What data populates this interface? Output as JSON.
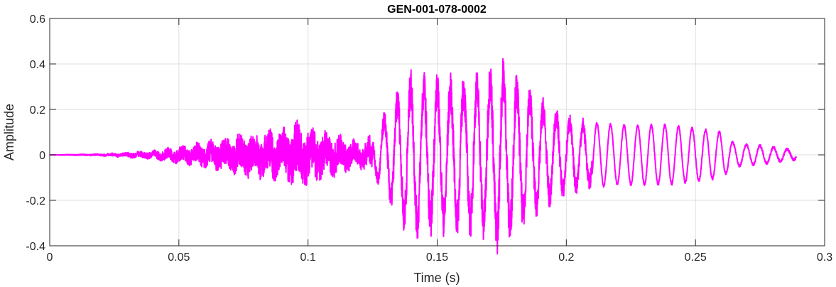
{
  "chart_data": {
    "type": "line",
    "title": "GEN-001-078-0002",
    "xlabel": "Time (s)",
    "ylabel": "Amplitude",
    "xlim": [
      0,
      0.3
    ],
    "ylim": [
      -0.4,
      0.6
    ],
    "xticks": [
      0,
      0.05,
      0.1,
      0.15,
      0.2,
      0.25,
      0.3
    ],
    "xtick_labels": [
      "0",
      "0.05",
      "0.1",
      "0.15",
      "0.2",
      "0.25",
      "0.3"
    ],
    "yticks": [
      -0.4,
      -0.2,
      0,
      0.2,
      0.4,
      0.6
    ],
    "ytick_labels": [
      "-0.4",
      "-0.2",
      "0",
      "0.2",
      "0.4",
      "0.6"
    ],
    "grid": true,
    "box": true,
    "series": [
      {
        "color": "#ff00ff",
        "duration_s": 0.289,
        "envelope_peaks": [
          [
            0.0,
            0.0
          ],
          [
            0.02,
            0.005
          ],
          [
            0.04,
            0.02
          ],
          [
            0.05,
            0.04
          ],
          [
            0.06,
            0.06
          ],
          [
            0.07,
            0.09
          ],
          [
            0.08,
            0.11
          ],
          [
            0.09,
            0.13
          ],
          [
            0.095,
            0.15
          ],
          [
            0.1,
            0.14
          ],
          [
            0.11,
            0.1
          ],
          [
            0.12,
            0.06
          ],
          [
            0.125,
            0.09
          ],
          [
            0.135,
            0.28
          ],
          [
            0.14,
            0.35
          ],
          [
            0.15,
            0.33
          ],
          [
            0.16,
            0.33
          ],
          [
            0.168,
            0.35
          ],
          [
            0.174,
            0.42
          ],
          [
            0.18,
            0.34
          ],
          [
            0.19,
            0.24
          ],
          [
            0.2,
            0.17
          ],
          [
            0.21,
            0.14
          ],
          [
            0.22,
            0.13
          ],
          [
            0.24,
            0.13
          ],
          [
            0.26,
            0.1
          ],
          [
            0.265,
            0.05
          ],
          [
            0.275,
            0.04
          ],
          [
            0.289,
            0.02
          ]
        ]
      }
    ]
  }
}
